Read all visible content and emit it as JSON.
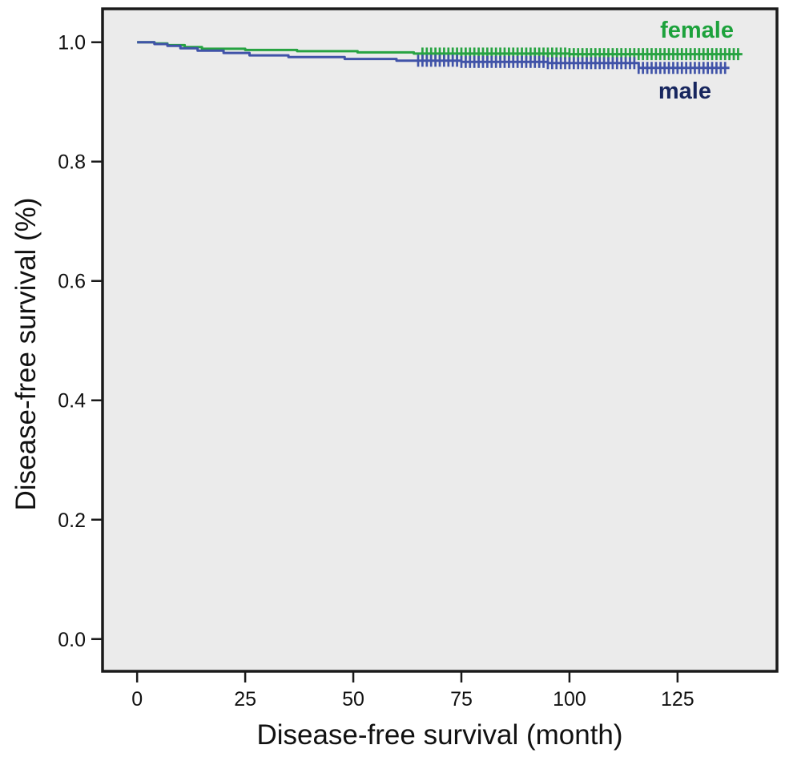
{
  "figure": {
    "background_color": "#ffffff",
    "plot_background_color": "#ebebeb",
    "border_color": "#1a1a1a",
    "tick_color": "#1a1a1a",
    "text_color": "#111111"
  },
  "chart_data": {
    "type": "line",
    "subtype": "kaplan-meier-step",
    "title": "",
    "xlabel": "Disease-free survival (month)",
    "ylabel": "Disease-free survival (%)",
    "xlim": [
      -8,
      148
    ],
    "ylim": [
      -0.054,
      1.056
    ],
    "grid": false,
    "legend_position": "top-right-inside",
    "x_ticks": [
      {
        "value": 0,
        "label": "0"
      },
      {
        "value": 25,
        "label": "25"
      },
      {
        "value": 50,
        "label": "50"
      },
      {
        "value": 75,
        "label": "75"
      },
      {
        "value": 100,
        "label": "100"
      },
      {
        "value": 125,
        "label": "125"
      }
    ],
    "y_ticks": [
      {
        "value": 0.0,
        "label": "0.0"
      },
      {
        "value": 0.2,
        "label": "0.2"
      },
      {
        "value": 0.4,
        "label": "0.4"
      },
      {
        "value": 0.6,
        "label": "0.6"
      },
      {
        "value": 0.8,
        "label": "0.8"
      },
      {
        "value": 1.0,
        "label": "1.0"
      }
    ],
    "series": [
      {
        "name": "female",
        "color": "#27a342",
        "label_color": "#1da23c",
        "end_month": 140,
        "steps": [
          [
            0,
            1.0
          ],
          [
            4,
            0.998
          ],
          [
            7,
            0.995
          ],
          [
            11,
            0.992
          ],
          [
            15,
            0.989
          ],
          [
            25,
            0.987
          ],
          [
            37,
            0.985
          ],
          [
            51,
            0.983
          ],
          [
            64,
            0.981
          ],
          [
            100,
            0.98
          ]
        ],
        "censor_months": [
          66,
          67,
          68,
          69,
          70,
          71,
          72,
          73,
          74,
          75,
          76,
          77,
          78,
          79,
          80,
          81,
          82,
          83,
          84,
          85,
          86,
          87,
          88,
          89,
          90,
          91,
          92,
          93,
          94,
          95,
          96,
          97,
          98,
          99,
          100,
          101,
          102,
          103,
          104,
          105,
          106,
          107,
          108,
          109,
          110,
          111,
          112,
          113,
          114,
          115,
          116,
          117,
          118,
          119,
          120,
          121,
          122,
          123,
          124,
          125,
          126,
          127,
          128,
          129,
          130,
          131,
          132,
          133,
          134,
          135,
          136,
          137,
          138,
          139
        ]
      },
      {
        "name": "male",
        "color": "#4053a8",
        "label_color": "#17265e",
        "end_month": 137,
        "steps": [
          [
            0,
            1.0
          ],
          [
            4,
            0.997
          ],
          [
            7,
            0.994
          ],
          [
            10,
            0.99
          ],
          [
            14,
            0.986
          ],
          [
            20,
            0.982
          ],
          [
            26,
            0.978
          ],
          [
            35,
            0.975
          ],
          [
            48,
            0.972
          ],
          [
            60,
            0.969
          ],
          [
            75,
            0.967
          ],
          [
            95,
            0.965
          ],
          [
            116,
            0.957
          ]
        ],
        "censor_months": [
          65,
          66,
          67,
          68,
          69,
          70,
          71,
          72,
          73,
          74,
          75,
          76,
          77,
          78,
          79,
          80,
          81,
          82,
          83,
          84,
          85,
          86,
          87,
          88,
          89,
          90,
          91,
          92,
          93,
          94,
          95,
          96,
          97,
          98,
          99,
          100,
          101,
          102,
          103,
          104,
          105,
          106,
          107,
          108,
          109,
          110,
          111,
          112,
          113,
          114,
          115,
          116,
          117,
          118,
          119,
          120,
          121,
          122,
          123,
          124,
          125,
          126,
          127,
          128,
          129,
          130,
          131,
          132,
          133,
          134,
          135,
          136
        ]
      }
    ]
  }
}
